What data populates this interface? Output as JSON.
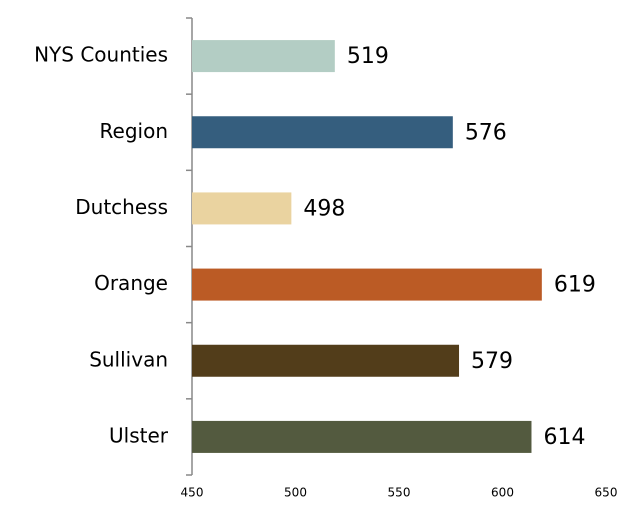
{
  "chart_data": {
    "type": "hbar",
    "categories": [
      "NYS Counties",
      "Region",
      "Dutchess",
      "Orange",
      "Sullivan",
      "Ulster"
    ],
    "values": [
      519,
      576,
      498,
      619,
      579,
      614
    ],
    "colors": [
      "#b3cdc4",
      "#355e7e",
      "#ead3a0",
      "#bb5b25",
      "#523d1a",
      "#535a3f"
    ],
    "xlim": [
      450,
      650
    ],
    "xticks": [
      450,
      500,
      550,
      600,
      650
    ],
    "grid": false
  }
}
